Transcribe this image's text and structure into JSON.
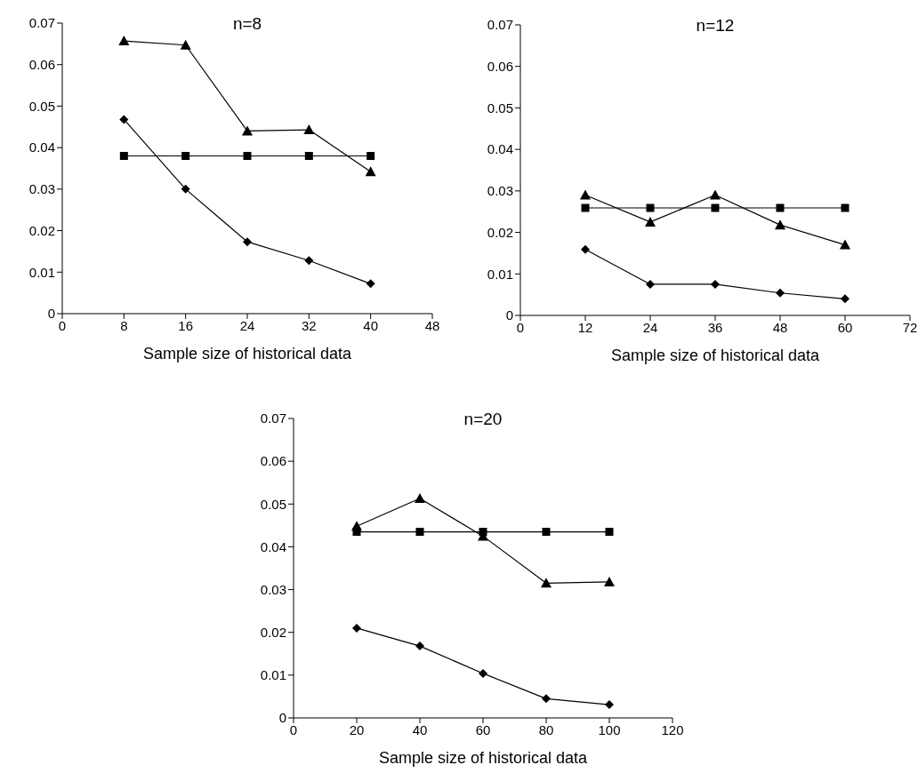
{
  "chart_data": [
    {
      "type": "line",
      "title": "n=8",
      "xlabel": "Sample size of historical data",
      "x": [
        8,
        16,
        24,
        32,
        40
      ],
      "xlim": [
        0,
        48
      ],
      "xticks": [
        0,
        8,
        16,
        24,
        32,
        40,
        48
      ],
      "ylim": [
        0,
        0.07
      ],
      "yticks": [
        0,
        0.01,
        0.02,
        0.03,
        0.04,
        0.05,
        0.06,
        0.07
      ],
      "series": [
        {
          "color": "#000000",
          "marker": "triangle",
          "values": [
            0.0657,
            0.0647,
            0.044,
            0.0443,
            0.0342
          ]
        },
        {
          "color": "#000000",
          "marker": "square",
          "values": [
            0.038,
            0.038,
            0.038,
            0.038,
            0.038
          ]
        },
        {
          "color": "#000000",
          "marker": "diamond",
          "values": [
            0.0468,
            0.03,
            0.0173,
            0.0128,
            0.0072
          ]
        }
      ]
    },
    {
      "type": "line",
      "title": "n=12",
      "xlabel": "Sample size of historical data",
      "x": [
        12,
        24,
        36,
        48,
        60
      ],
      "xlim": [
        0,
        72
      ],
      "xticks": [
        0,
        12,
        24,
        36,
        48,
        60,
        72
      ],
      "ylim": [
        0,
        0.07
      ],
      "yticks": [
        0,
        0.01,
        0.02,
        0.03,
        0.04,
        0.05,
        0.06,
        0.07
      ],
      "series": [
        {
          "color": "#000000",
          "marker": "triangle",
          "values": [
            0.029,
            0.0225,
            0.029,
            0.0218,
            0.017
          ]
        },
        {
          "color": "#000000",
          "marker": "square",
          "values": [
            0.0259,
            0.0259,
            0.0259,
            0.0259,
            0.0259
          ]
        },
        {
          "color": "#000000",
          "marker": "diamond",
          "values": [
            0.0159,
            0.0075,
            0.0075,
            0.0054,
            0.004
          ]
        }
      ]
    },
    {
      "type": "line",
      "title": "n=20",
      "xlabel": "Sample size of historical data",
      "x": [
        20,
        40,
        60,
        80,
        100
      ],
      "xlim": [
        0,
        120
      ],
      "xticks": [
        0,
        20,
        40,
        60,
        80,
        100,
        120
      ],
      "ylim": [
        0,
        0.07
      ],
      "yticks": [
        0,
        0.01,
        0.02,
        0.03,
        0.04,
        0.05,
        0.06,
        0.07
      ],
      "series": [
        {
          "color": "#000000",
          "marker": "triangle",
          "values": [
            0.0448,
            0.0513,
            0.0425,
            0.0315,
            0.0318
          ]
        },
        {
          "color": "#000000",
          "marker": "square",
          "values": [
            0.0435,
            0.0435,
            0.0435,
            0.0435,
            0.0435
          ]
        },
        {
          "color": "#000000",
          "marker": "diamond",
          "values": [
            0.021,
            0.0168,
            0.0104,
            0.0045,
            0.0031
          ]
        }
      ]
    }
  ]
}
